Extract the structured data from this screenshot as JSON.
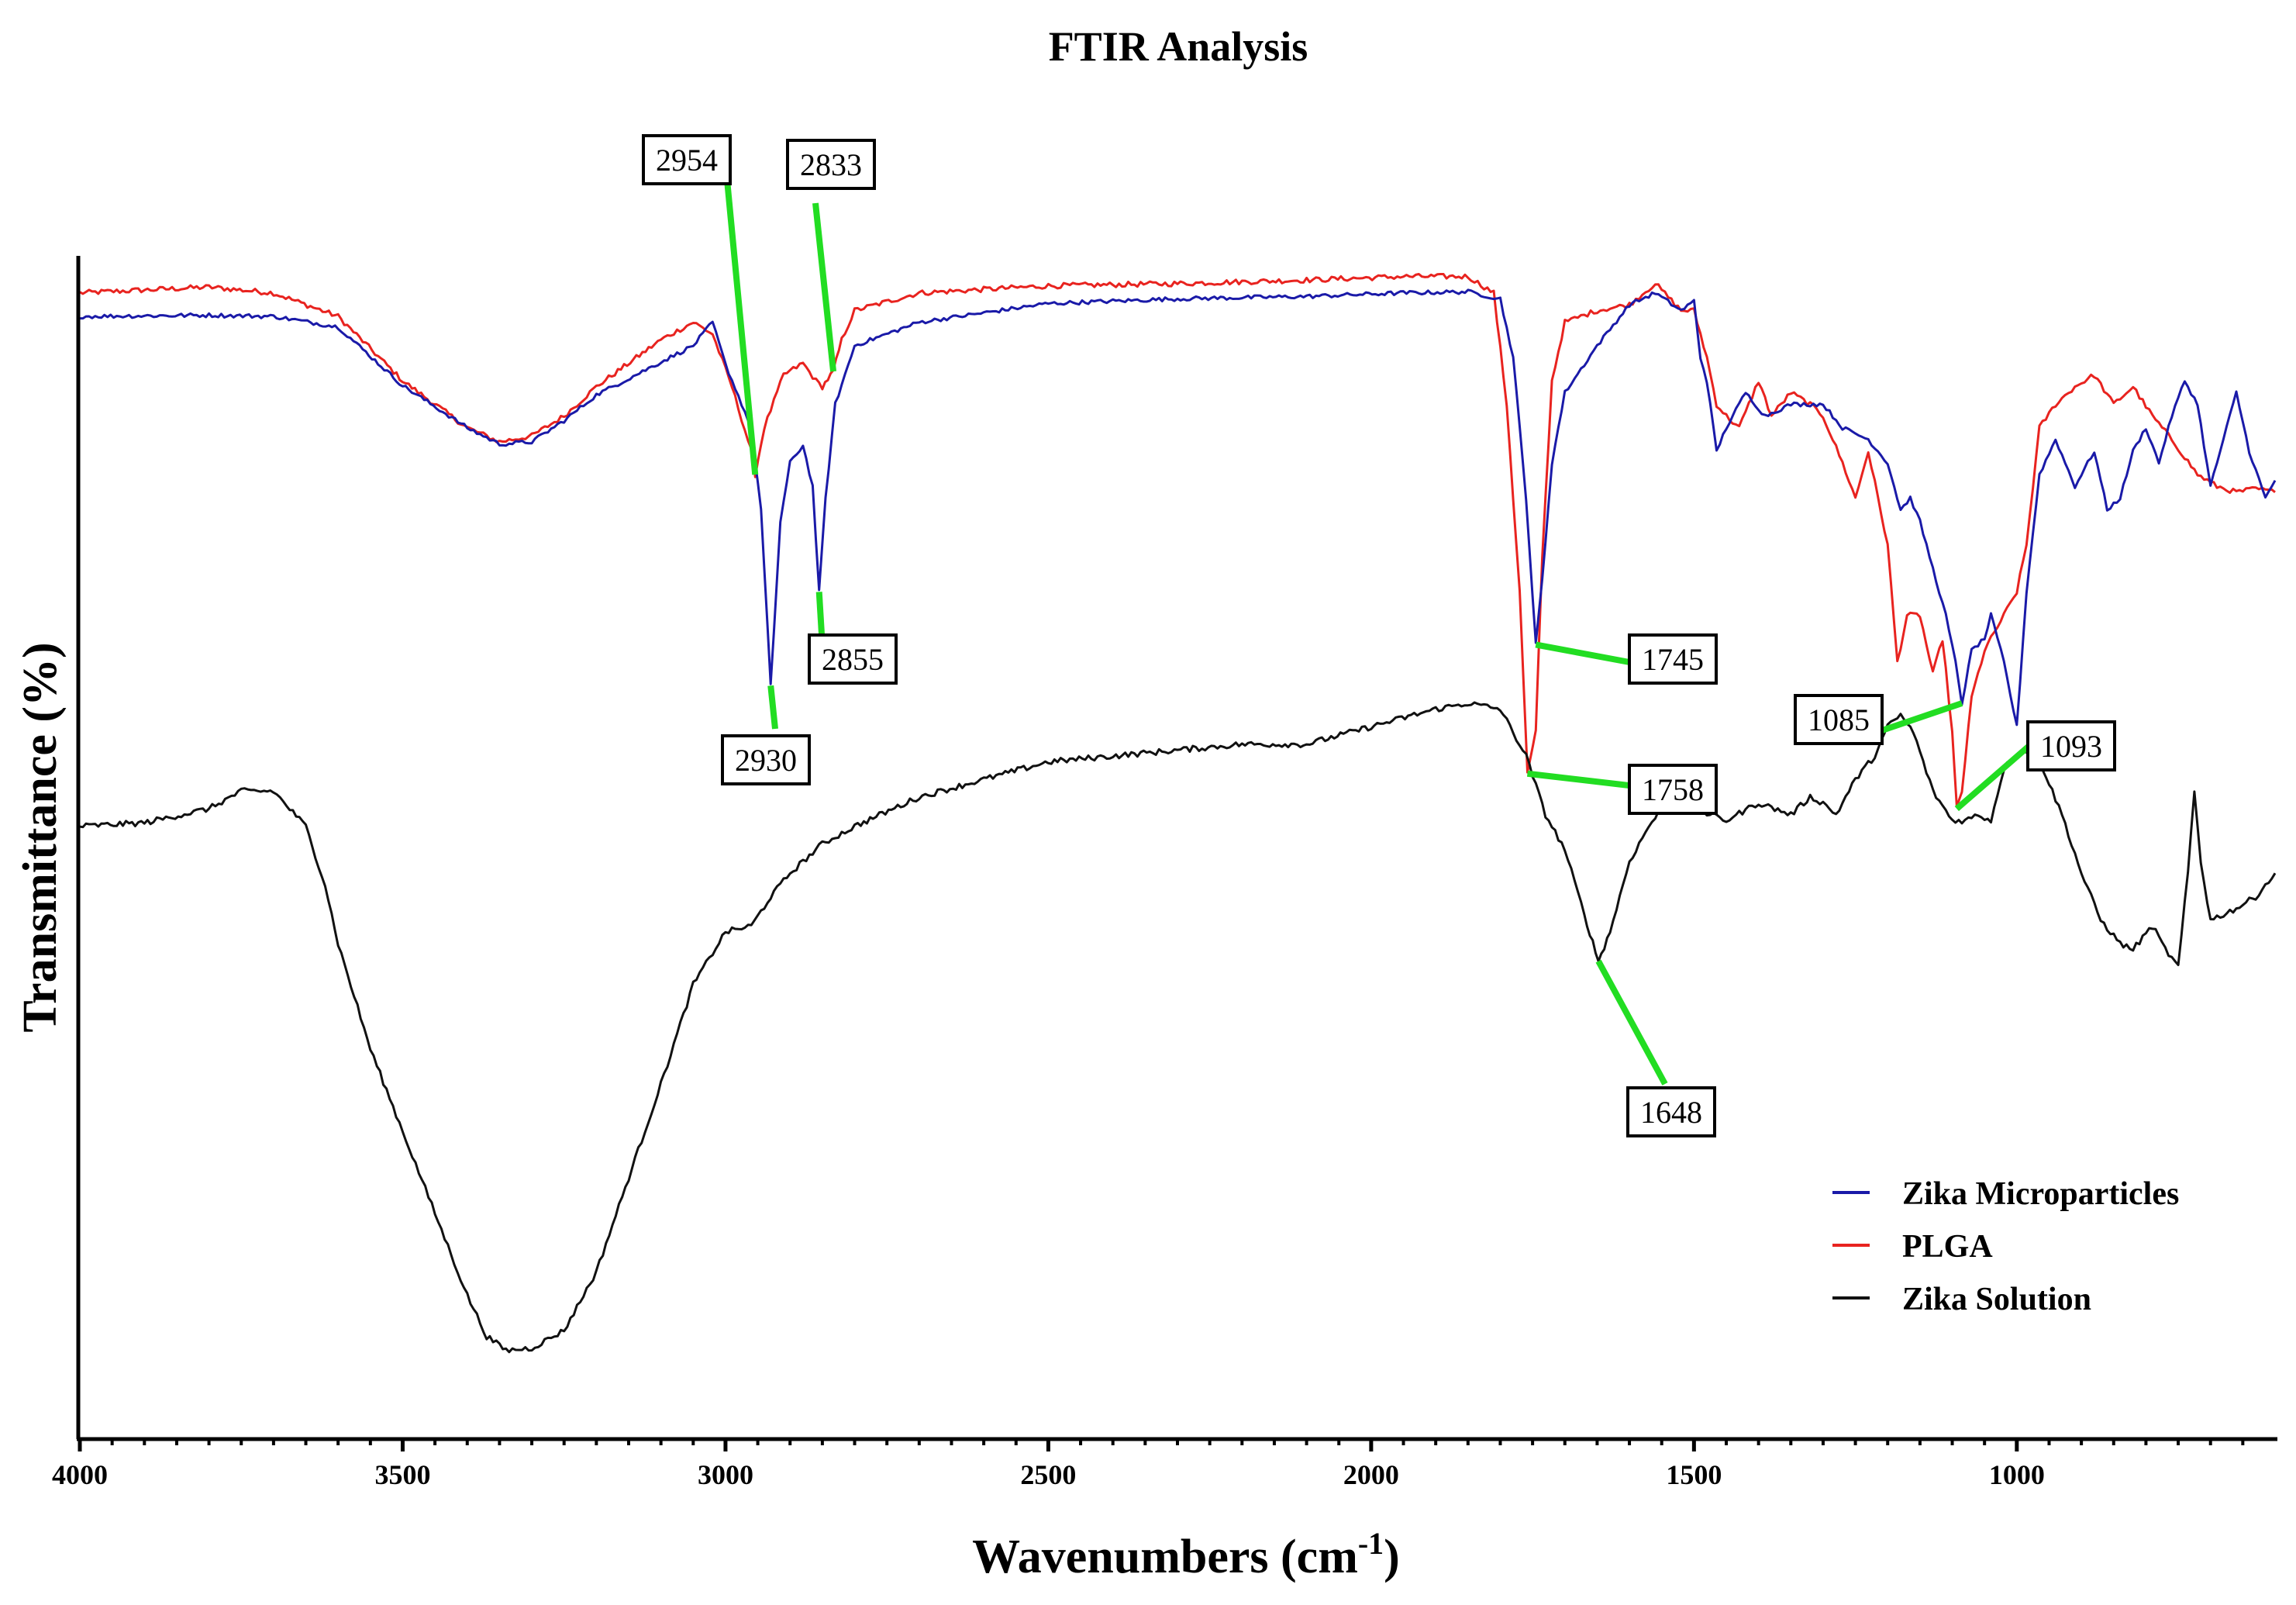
{
  "chart_data": {
    "type": "line",
    "title": "FTIR Analysis",
    "xlabel": "Wavenumbers (cm",
    "xlabel_sup": "-1",
    "xlabel_end": ")",
    "ylabel": "Transmittance (%)",
    "xlim": [
      4000,
      600
    ],
    "x_reversed": true,
    "ylim": [
      0,
      100
    ],
    "y_ticks_shown": false,
    "x_ticks": [
      {
        "value": 4000,
        "label": "4000"
      },
      {
        "value": 3500,
        "label": "3500"
      },
      {
        "value": 3000,
        "label": "3000"
      },
      {
        "value": 2500,
        "label": "2500"
      },
      {
        "value": 2000,
        "label": "2000"
      },
      {
        "value": 1500,
        "label": "1500"
      },
      {
        "value": 1000,
        "label": "1000"
      }
    ],
    "legend_position": "bottom-right",
    "series": [
      {
        "name": "Zika Microparticles",
        "color": "#1a1aa8",
        "points": [
          [
            4000,
            95.5
          ],
          [
            3800,
            95.6
          ],
          [
            3700,
            95.5
          ],
          [
            3600,
            94.6
          ],
          [
            3500,
            89.6
          ],
          [
            3400,
            86.0
          ],
          [
            3350,
            84.6
          ],
          [
            3300,
            84.8
          ],
          [
            3250,
            86.6
          ],
          [
            3200,
            88.8
          ],
          [
            3100,
            91.6
          ],
          [
            3050,
            93.0
          ],
          [
            3020,
            95.0
          ],
          [
            3000,
            91.4
          ],
          [
            2960,
            86.0
          ],
          [
            2945,
            79.0
          ],
          [
            2930,
            64.0
          ],
          [
            2915,
            78.0
          ],
          [
            2900,
            83.0
          ],
          [
            2880,
            84.5
          ],
          [
            2865,
            81.0
          ],
          [
            2855,
            72.0
          ],
          [
            2845,
            80.0
          ],
          [
            2830,
            88.0
          ],
          [
            2800,
            93.0
          ],
          [
            2700,
            95.0
          ],
          [
            2500,
            96.6
          ],
          [
            2300,
            97.0
          ],
          [
            2100,
            97.2
          ],
          [
            1950,
            97.5
          ],
          [
            1850,
            97.6
          ],
          [
            1800,
            97.0
          ],
          [
            1780,
            92.0
          ],
          [
            1760,
            80.0
          ],
          [
            1745,
            67.5
          ],
          [
            1735,
            73.0
          ],
          [
            1720,
            83.0
          ],
          [
            1700,
            89.0
          ],
          [
            1650,
            93.0
          ],
          [
            1600,
            96.5
          ],
          [
            1560,
            97.5
          ],
          [
            1520,
            96.0
          ],
          [
            1500,
            96.8
          ],
          [
            1490,
            92.0
          ],
          [
            1480,
            90.0
          ],
          [
            1465,
            84.0
          ],
          [
            1450,
            86.0
          ],
          [
            1420,
            89.0
          ],
          [
            1390,
            87.0
          ],
          [
            1350,
            88.0
          ],
          [
            1300,
            88.0
          ],
          [
            1270,
            86.0
          ],
          [
            1230,
            85.0
          ],
          [
            1200,
            83.0
          ],
          [
            1180,
            79.0
          ],
          [
            1165,
            80.0
          ],
          [
            1150,
            78.0
          ],
          [
            1130,
            74.0
          ],
          [
            1110,
            70.0
          ],
          [
            1095,
            66.0
          ],
          [
            1085,
            62.5
          ],
          [
            1070,
            67.0
          ],
          [
            1050,
            68.0
          ],
          [
            1040,
            70.0
          ],
          [
            1020,
            66.0
          ],
          [
            1000,
            60.5
          ],
          [
            985,
            72.0
          ],
          [
            965,
            82.0
          ],
          [
            940,
            85.0
          ],
          [
            910,
            81.0
          ],
          [
            880,
            84.0
          ],
          [
            860,
            79.0
          ],
          [
            840,
            80.0
          ],
          [
            820,
            84.0
          ],
          [
            800,
            86.0
          ],
          [
            780,
            83.0
          ],
          [
            760,
            87.0
          ],
          [
            740,
            90.0
          ],
          [
            720,
            88.0
          ],
          [
            700,
            81.0
          ],
          [
            680,
            85.0
          ],
          [
            660,
            89.0
          ],
          [
            640,
            84.0
          ],
          [
            615,
            80.0
          ],
          [
            600,
            81.5
          ]
        ]
      },
      {
        "name": "PLGA",
        "color": "#e8231f",
        "points": [
          [
            4000,
            97.5
          ],
          [
            3800,
            98.0
          ],
          [
            3700,
            97.5
          ],
          [
            3600,
            95.5
          ],
          [
            3500,
            90.0
          ],
          [
            3400,
            86.0
          ],
          [
            3350,
            84.8
          ],
          [
            3300,
            85.3
          ],
          [
            3250,
            87.0
          ],
          [
            3200,
            89.5
          ],
          [
            3100,
            93.5
          ],
          [
            3050,
            95.0
          ],
          [
            3020,
            94.0
          ],
          [
            2990,
            89.5
          ],
          [
            2960,
            84.0
          ],
          [
            2954,
            82.0
          ],
          [
            2940,
            86.0
          ],
          [
            2910,
            90.5
          ],
          [
            2880,
            91.5
          ],
          [
            2860,
            90.0
          ],
          [
            2850,
            89.5
          ],
          [
            2833,
            90.8
          ],
          [
            2820,
            93.5
          ],
          [
            2800,
            96.0
          ],
          [
            2700,
            97.5
          ],
          [
            2500,
            98.1
          ],
          [
            2300,
            98.3
          ],
          [
            2100,
            98.6
          ],
          [
            1950,
            98.9
          ],
          [
            1850,
            98.9
          ],
          [
            1810,
            97.5
          ],
          [
            1790,
            88.0
          ],
          [
            1770,
            72.0
          ],
          [
            1758,
            56.5
          ],
          [
            1745,
            60.0
          ],
          [
            1735,
            75.0
          ],
          [
            1720,
            90.0
          ],
          [
            1700,
            95.0
          ],
          [
            1650,
            96.0
          ],
          [
            1600,
            96.5
          ],
          [
            1560,
            98.3
          ],
          [
            1520,
            96.0
          ],
          [
            1500,
            96.0
          ],
          [
            1480,
            92.0
          ],
          [
            1465,
            88.0
          ],
          [
            1450,
            87.0
          ],
          [
            1430,
            86.0
          ],
          [
            1400,
            90.0
          ],
          [
            1380,
            87.0
          ],
          [
            1350,
            89.0
          ],
          [
            1320,
            88.0
          ],
          [
            1300,
            87.0
          ],
          [
            1270,
            83.0
          ],
          [
            1250,
            80.0
          ],
          [
            1230,
            84.0
          ],
          [
            1200,
            76.0
          ],
          [
            1185,
            66.0
          ],
          [
            1170,
            70.0
          ],
          [
            1150,
            70.0
          ],
          [
            1130,
            65.0
          ],
          [
            1115,
            68.0
          ],
          [
            1100,
            60.0
          ],
          [
            1093,
            53.5
          ],
          [
            1085,
            55.0
          ],
          [
            1070,
            63.0
          ],
          [
            1050,
            67.0
          ],
          [
            1020,
            70.0
          ],
          [
            1000,
            72.0
          ],
          [
            985,
            76.0
          ],
          [
            965,
            86.0
          ],
          [
            940,
            88.0
          ],
          [
            910,
            89.5
          ],
          [
            880,
            90.5
          ],
          [
            850,
            88.0
          ],
          [
            820,
            89.5
          ],
          [
            790,
            87.0
          ],
          [
            760,
            85.0
          ],
          [
            720,
            82.0
          ],
          [
            690,
            81.0
          ],
          [
            660,
            80.5
          ],
          [
            630,
            80.8
          ],
          [
            600,
            80.5
          ]
        ]
      },
      {
        "name": "Zika Solution",
        "color": "#111111",
        "points": [
          [
            4000,
            52.0
          ],
          [
            3900,
            52.3
          ],
          [
            3800,
            53.5
          ],
          [
            3750,
            55.0
          ],
          [
            3700,
            55.0
          ],
          [
            3650,
            52.0
          ],
          [
            3620,
            47.0
          ],
          [
            3600,
            42.0
          ],
          [
            3550,
            33.0
          ],
          [
            3500,
            26.0
          ],
          [
            3450,
            19.0
          ],
          [
            3400,
            12.0
          ],
          [
            3370,
            8.5
          ],
          [
            3340,
            7.3
          ],
          [
            3300,
            7.5
          ],
          [
            3250,
            9.0
          ],
          [
            3200,
            14.0
          ],
          [
            3150,
            22.0
          ],
          [
            3100,
            30.0
          ],
          [
            3050,
            38.5
          ],
          [
            3000,
            43.0
          ],
          [
            2960,
            43.5
          ],
          [
            2930,
            46.0
          ],
          [
            2900,
            48.0
          ],
          [
            2850,
            50.5
          ],
          [
            2800,
            52.0
          ],
          [
            2700,
            54.5
          ],
          [
            2600,
            56.0
          ],
          [
            2500,
            57.5
          ],
          [
            2400,
            58.0
          ],
          [
            2300,
            58.5
          ],
          [
            2200,
            59.0
          ],
          [
            2100,
            59.0
          ],
          [
            2000,
            60.5
          ],
          [
            1900,
            62.0
          ],
          [
            1850,
            62.5
          ],
          [
            1800,
            62.0
          ],
          [
            1760,
            58.0
          ],
          [
            1730,
            53.0
          ],
          [
            1700,
            50.0
          ],
          [
            1670,
            44.5
          ],
          [
            1648,
            40.5
          ],
          [
            1630,
            43.0
          ],
          [
            1600,
            49.0
          ],
          [
            1570,
            52.0
          ],
          [
            1550,
            53.5
          ],
          [
            1500,
            53.5
          ],
          [
            1450,
            52.5
          ],
          [
            1400,
            54.0
          ],
          [
            1350,
            53.0
          ],
          [
            1320,
            54.5
          ],
          [
            1300,
            54.0
          ],
          [
            1280,
            53.0
          ],
          [
            1250,
            56.0
          ],
          [
            1220,
            58.0
          ],
          [
            1200,
            60.5
          ],
          [
            1180,
            61.5
          ],
          [
            1160,
            60.0
          ],
          [
            1130,
            55.0
          ],
          [
            1100,
            52.5
          ],
          [
            1080,
            52.5
          ],
          [
            1060,
            53.0
          ],
          [
            1040,
            52.5
          ],
          [
            1020,
            57.0
          ],
          [
            1000,
            58.0
          ],
          [
            985,
            58.5
          ],
          [
            960,
            57.0
          ],
          [
            930,
            53.0
          ],
          [
            900,
            48.0
          ],
          [
            870,
            44.0
          ],
          [
            840,
            42.0
          ],
          [
            820,
            41.5
          ],
          [
            790,
            43.5
          ],
          [
            770,
            41.5
          ],
          [
            750,
            40.0
          ],
          [
            735,
            48.0
          ],
          [
            725,
            55.0
          ],
          [
            715,
            49.0
          ],
          [
            700,
            44.0
          ],
          [
            680,
            44.5
          ],
          [
            660,
            45.0
          ],
          [
            630,
            46.0
          ],
          [
            600,
            48.0
          ]
        ]
      }
    ],
    "annotations": [
      {
        "label": "2954",
        "x": 2954,
        "y": 82.0,
        "color": "#22dd22"
      },
      {
        "label": "2833",
        "x": 2833,
        "y": 90.8,
        "color": "#22dd22"
      },
      {
        "label": "2855",
        "x": 2855,
        "y": 72.0,
        "color": "#22dd22"
      },
      {
        "label": "2930",
        "x": 2930,
        "y": 64.0,
        "color": "#22dd22"
      },
      {
        "label": "1745",
        "x": 1745,
        "y": 67.5,
        "color": "#22dd22"
      },
      {
        "label": "1758",
        "x": 1758,
        "y": 56.5,
        "color": "#22dd22"
      },
      {
        "label": "1085",
        "x": 1085,
        "y": 62.5,
        "color": "#22dd22"
      },
      {
        "label": "1093",
        "x": 1093,
        "y": 53.5,
        "color": "#22dd22"
      },
      {
        "label": "1648",
        "x": 1648,
        "y": 40.5,
        "color": "#22dd22"
      }
    ]
  }
}
